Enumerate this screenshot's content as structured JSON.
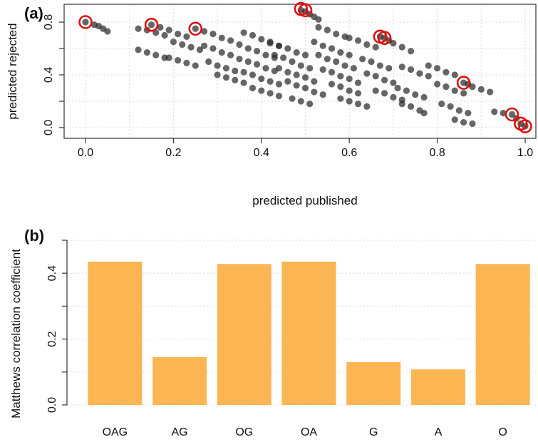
{
  "panels": {
    "a_label": "(a)",
    "b_label": "(b)"
  },
  "colors": {
    "scatter_point": "#2b2b2b",
    "highlight_ring": "#e01010",
    "bar_fill": "#fbb552",
    "grid": "#d9d9d9",
    "axis": "#333333"
  },
  "chart_data": [
    {
      "type": "scatter",
      "panel": "(a)",
      "title": "",
      "xlabel": "predicted published",
      "ylabel": "predicted rejected",
      "xlim": [
        0.0,
        1.0
      ],
      "ylim": [
        0.0,
        0.8
      ],
      "xticks": [
        "0.0",
        "0.2",
        "0.4",
        "0.6",
        "0.8",
        "1.0"
      ],
      "yticks": [
        "0.0",
        "0.4",
        "0.8"
      ],
      "grid": true,
      "note_points": "dense diagonal bands of dark points; representative points listed",
      "points": [
        [
          0.0,
          0.8
        ],
        [
          0.02,
          0.78
        ],
        [
          0.03,
          0.77
        ],
        [
          0.04,
          0.75
        ],
        [
          0.05,
          0.73
        ],
        [
          0.12,
          0.75
        ],
        [
          0.14,
          0.74
        ],
        [
          0.16,
          0.72
        ],
        [
          0.18,
          0.7
        ],
        [
          0.12,
          0.59
        ],
        [
          0.14,
          0.57
        ],
        [
          0.16,
          0.55
        ],
        [
          0.18,
          0.53
        ],
        [
          0.15,
          0.78
        ],
        [
          0.17,
          0.76
        ],
        [
          0.19,
          0.74
        ],
        [
          0.21,
          0.71
        ],
        [
          0.23,
          0.69
        ],
        [
          0.2,
          0.65
        ],
        [
          0.22,
          0.63
        ],
        [
          0.24,
          0.61
        ],
        [
          0.26,
          0.59
        ],
        [
          0.19,
          0.53
        ],
        [
          0.21,
          0.51
        ],
        [
          0.23,
          0.49
        ],
        [
          0.25,
          0.47
        ],
        [
          0.25,
          0.75
        ],
        [
          0.27,
          0.73
        ],
        [
          0.29,
          0.71
        ],
        [
          0.31,
          0.68
        ],
        [
          0.33,
          0.66
        ],
        [
          0.27,
          0.62
        ],
        [
          0.29,
          0.6
        ],
        [
          0.31,
          0.57
        ],
        [
          0.33,
          0.55
        ],
        [
          0.28,
          0.5
        ],
        [
          0.3,
          0.47
        ],
        [
          0.32,
          0.45
        ],
        [
          0.34,
          0.43
        ],
        [
          0.3,
          0.4
        ],
        [
          0.32,
          0.38
        ],
        [
          0.34,
          0.36
        ],
        [
          0.36,
          0.34
        ],
        [
          0.36,
          0.72
        ],
        [
          0.38,
          0.7
        ],
        [
          0.4,
          0.67
        ],
        [
          0.42,
          0.64
        ],
        [
          0.44,
          0.62
        ],
        [
          0.35,
          0.63
        ],
        [
          0.37,
          0.6
        ],
        [
          0.39,
          0.58
        ],
        [
          0.41,
          0.55
        ],
        [
          0.43,
          0.53
        ],
        [
          0.35,
          0.52
        ],
        [
          0.37,
          0.5
        ],
        [
          0.39,
          0.48
        ],
        [
          0.41,
          0.45
        ],
        [
          0.43,
          0.43
        ],
        [
          0.36,
          0.42
        ],
        [
          0.38,
          0.4
        ],
        [
          0.4,
          0.37
        ],
        [
          0.42,
          0.35
        ],
        [
          0.44,
          0.33
        ],
        [
          0.38,
          0.3
        ],
        [
          0.4,
          0.28
        ],
        [
          0.42,
          0.26
        ],
        [
          0.44,
          0.24
        ],
        [
          0.42,
          0.65
        ],
        [
          0.44,
          0.62
        ],
        [
          0.46,
          0.6
        ],
        [
          0.48,
          0.57
        ],
        [
          0.5,
          0.55
        ],
        [
          0.43,
          0.55
        ],
        [
          0.45,
          0.53
        ],
        [
          0.47,
          0.5
        ],
        [
          0.49,
          0.47
        ],
        [
          0.51,
          0.45
        ],
        [
          0.44,
          0.45
        ],
        [
          0.46,
          0.42
        ],
        [
          0.48,
          0.4
        ],
        [
          0.5,
          0.38
        ],
        [
          0.52,
          0.35
        ],
        [
          0.46,
          0.35
        ],
        [
          0.48,
          0.32
        ],
        [
          0.5,
          0.3
        ],
        [
          0.52,
          0.27
        ],
        [
          0.54,
          0.25
        ],
        [
          0.47,
          0.22
        ],
        [
          0.49,
          0.2
        ],
        [
          0.51,
          0.18
        ],
        [
          0.49,
          0.89
        ],
        [
          0.5,
          0.88
        ],
        [
          0.51,
          0.86
        ],
        [
          0.52,
          0.84
        ],
        [
          0.53,
          0.82
        ],
        [
          0.53,
          0.76
        ],
        [
          0.55,
          0.74
        ],
        [
          0.57,
          0.71
        ],
        [
          0.59,
          0.69
        ],
        [
          0.52,
          0.65
        ],
        [
          0.54,
          0.62
        ],
        [
          0.56,
          0.6
        ],
        [
          0.58,
          0.57
        ],
        [
          0.6,
          0.55
        ],
        [
          0.53,
          0.55
        ],
        [
          0.55,
          0.52
        ],
        [
          0.57,
          0.5
        ],
        [
          0.59,
          0.47
        ],
        [
          0.61,
          0.45
        ],
        [
          0.54,
          0.44
        ],
        [
          0.56,
          0.42
        ],
        [
          0.58,
          0.39
        ],
        [
          0.6,
          0.37
        ],
        [
          0.62,
          0.34
        ],
        [
          0.56,
          0.33
        ],
        [
          0.58,
          0.31
        ],
        [
          0.6,
          0.28
        ],
        [
          0.62,
          0.26
        ],
        [
          0.58,
          0.22
        ],
        [
          0.6,
          0.2
        ],
        [
          0.62,
          0.18
        ],
        [
          0.64,
          0.16
        ],
        [
          0.6,
          0.68
        ],
        [
          0.62,
          0.66
        ],
        [
          0.64,
          0.63
        ],
        [
          0.66,
          0.61
        ],
        [
          0.63,
          0.52
        ],
        [
          0.65,
          0.5
        ],
        [
          0.67,
          0.47
        ],
        [
          0.69,
          0.45
        ],
        [
          0.64,
          0.41
        ],
        [
          0.66,
          0.39
        ],
        [
          0.68,
          0.36
        ],
        [
          0.7,
          0.34
        ],
        [
          0.66,
          0.28
        ],
        [
          0.68,
          0.26
        ],
        [
          0.7,
          0.23
        ],
        [
          0.72,
          0.21
        ],
        [
          0.67,
          0.69
        ],
        [
          0.68,
          0.68
        ],
        [
          0.69,
          0.66
        ],
        [
          0.7,
          0.64
        ],
        [
          0.72,
          0.61
        ],
        [
          0.74,
          0.58
        ],
        [
          0.72,
          0.46
        ],
        [
          0.74,
          0.44
        ],
        [
          0.76,
          0.41
        ],
        [
          0.78,
          0.39
        ],
        [
          0.71,
          0.3
        ],
        [
          0.73,
          0.28
        ],
        [
          0.75,
          0.25
        ],
        [
          0.77,
          0.23
        ],
        [
          0.72,
          0.18
        ],
        [
          0.74,
          0.16
        ],
        [
          0.76,
          0.13
        ],
        [
          0.77,
          0.11
        ],
        [
          0.78,
          0.47
        ],
        [
          0.8,
          0.45
        ],
        [
          0.82,
          0.42
        ],
        [
          0.84,
          0.4
        ],
        [
          0.8,
          0.33
        ],
        [
          0.82,
          0.31
        ],
        [
          0.84,
          0.28
        ],
        [
          0.86,
          0.26
        ],
        [
          0.81,
          0.18
        ],
        [
          0.83,
          0.16
        ],
        [
          0.85,
          0.13
        ],
        [
          0.87,
          0.11
        ],
        [
          0.84,
          0.06
        ],
        [
          0.86,
          0.04
        ],
        [
          0.88,
          0.03
        ],
        [
          0.86,
          0.34
        ],
        [
          0.87,
          0.33
        ],
        [
          0.88,
          0.31
        ],
        [
          0.9,
          0.29
        ],
        [
          0.92,
          0.27
        ],
        [
          0.93,
          0.12
        ],
        [
          0.95,
          0.11
        ],
        [
          0.97,
          0.1
        ],
        [
          0.98,
          0.07
        ],
        [
          0.99,
          0.03
        ],
        [
          1.0,
          0.01
        ]
      ],
      "highlighted": [
        [
          0.0,
          0.8
        ],
        [
          0.15,
          0.78
        ],
        [
          0.25,
          0.75
        ],
        [
          0.49,
          0.9
        ],
        [
          0.5,
          0.89
        ],
        [
          0.67,
          0.69
        ],
        [
          0.68,
          0.68
        ],
        [
          0.86,
          0.34
        ],
        [
          0.97,
          0.1
        ],
        [
          0.99,
          0.03
        ],
        [
          1.0,
          0.01
        ]
      ]
    },
    {
      "type": "bar",
      "panel": "(b)",
      "title": "",
      "xlabel": "",
      "ylabel": "Matthews correlation coefficient",
      "categories": [
        "OAG",
        "AG",
        "OG",
        "OA",
        "G",
        "A",
        "O"
      ],
      "values": [
        0.435,
        0.145,
        0.428,
        0.435,
        0.13,
        0.108,
        0.428
      ],
      "ylim": [
        0.0,
        0.5
      ],
      "yticks": [
        "0.0",
        "0.2",
        "0.4"
      ],
      "grid": true
    }
  ]
}
